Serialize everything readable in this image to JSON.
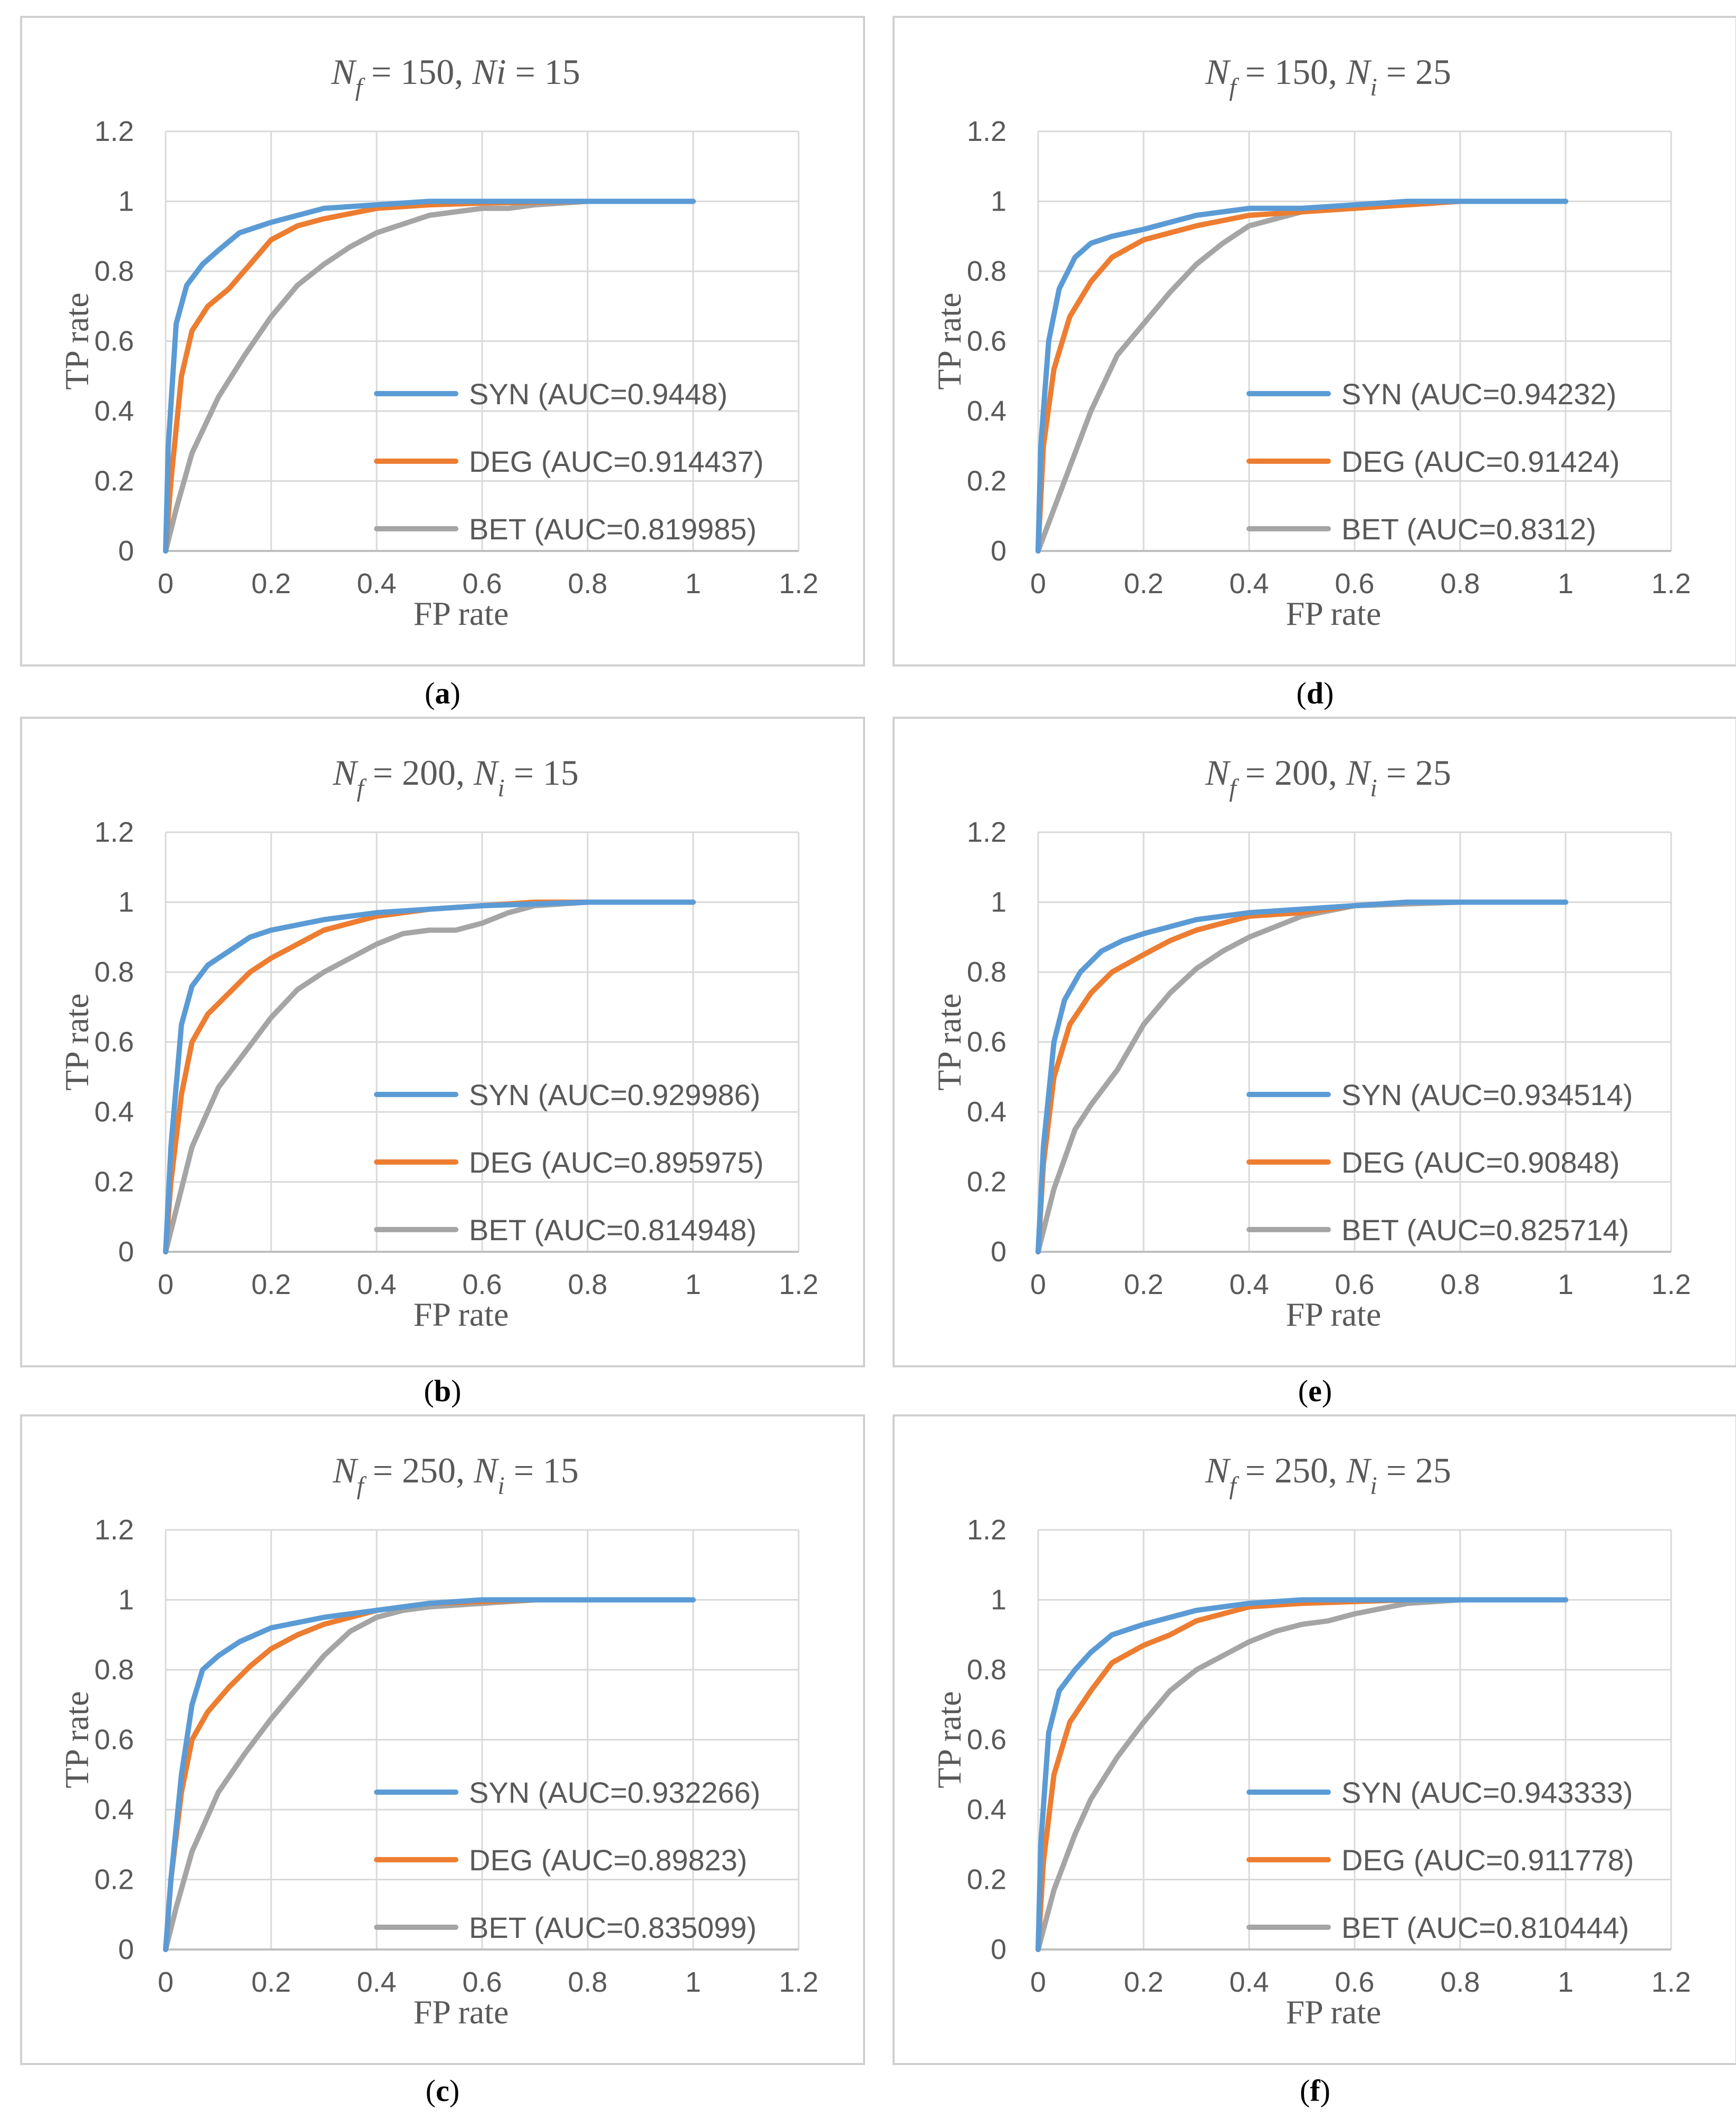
{
  "colors": {
    "syn": "#5b9bd5",
    "deg": "#ed7d31",
    "bet": "#a5a5a5",
    "grid": "#d9d9d9",
    "axis": "#bfbfbf",
    "text": "#595959"
  },
  "chart_data": [
    {
      "id": "a",
      "caption": "a",
      "type": "line",
      "title": {
        "n": "N",
        "nsub": "f",
        "mid": " = 150, ",
        "i": "Ni",
        "isub": "",
        "end": " = 15"
      },
      "xlabel": "FP rate",
      "ylabel": "TP rate",
      "xlim": [
        0,
        1.2
      ],
      "ylim": [
        0,
        1.2
      ],
      "xticks": [
        "0",
        "0.2",
        "0.4",
        "0.6",
        "0.8",
        "1",
        "1.2"
      ],
      "yticks": [
        "0",
        "0.2",
        "0.4",
        "0.6",
        "0.8",
        "1",
        "1.2"
      ],
      "legend_position": "lower-right",
      "series": [
        {
          "name": "SYN (AUC=0.9448)",
          "color": "syn",
          "x": [
            0,
            0.005,
            0.02,
            0.04,
            0.07,
            0.1,
            0.14,
            0.2,
            0.3,
            0.4,
            0.5,
            0.6,
            0.8,
            1
          ],
          "y": [
            0,
            0.3,
            0.65,
            0.76,
            0.82,
            0.86,
            0.91,
            0.94,
            0.98,
            0.99,
            1,
            1,
            1,
            1
          ]
        },
        {
          "name": "DEG (AUC=0.914437)",
          "color": "deg",
          "x": [
            0,
            0.01,
            0.03,
            0.05,
            0.08,
            0.12,
            0.16,
            0.2,
            0.25,
            0.3,
            0.4,
            0.5,
            0.6,
            0.8,
            1
          ],
          "y": [
            0,
            0.2,
            0.5,
            0.63,
            0.7,
            0.75,
            0.82,
            0.89,
            0.93,
            0.95,
            0.98,
            0.99,
            0.995,
            1,
            1
          ],
          "comment": ""
        },
        {
          "name": "BET (AUC=0.819985)",
          "color": "bet",
          "x": [
            0,
            0.02,
            0.05,
            0.1,
            0.15,
            0.2,
            0.25,
            0.3,
            0.35,
            0.4,
            0.5,
            0.6,
            0.65,
            0.7,
            0.8,
            1
          ],
          "y": [
            0,
            0.12,
            0.28,
            0.44,
            0.56,
            0.67,
            0.76,
            0.82,
            0.87,
            0.91,
            0.96,
            0.98,
            0.98,
            0.99,
            1,
            1
          ]
        }
      ]
    },
    {
      "id": "d",
      "caption": "d",
      "type": "line",
      "title": {
        "n": "N",
        "nsub": "f",
        "mid": " = 150, ",
        "i": "N",
        "isub": "i",
        "end": " = 25"
      },
      "xlabel": "FP rate",
      "ylabel": "TP rate",
      "xlim": [
        0,
        1.2
      ],
      "ylim": [
        0,
        1.2
      ],
      "xticks": [
        "0",
        "0.2",
        "0.4",
        "0.6",
        "0.8",
        "1",
        "1.2"
      ],
      "yticks": [
        "0",
        "0.2",
        "0.4",
        "0.6",
        "0.8",
        "1",
        "1.2"
      ],
      "legend_position": "lower-right",
      "series": [
        {
          "name": "SYN (AUC=0.94232)",
          "color": "syn",
          "x": [
            0,
            0.005,
            0.02,
            0.04,
            0.07,
            0.1,
            0.14,
            0.2,
            0.3,
            0.4,
            0.5,
            0.6,
            0.7,
            0.8,
            1
          ],
          "y": [
            0,
            0.3,
            0.6,
            0.75,
            0.84,
            0.88,
            0.9,
            0.92,
            0.96,
            0.98,
            0.98,
            0.99,
            1,
            1,
            1
          ]
        },
        {
          "name": "DEG (AUC=0.91424)",
          "color": "deg",
          "x": [
            0,
            0.01,
            0.03,
            0.06,
            0.1,
            0.14,
            0.2,
            0.3,
            0.4,
            0.5,
            0.6,
            0.7,
            0.8,
            1
          ],
          "y": [
            0,
            0.3,
            0.52,
            0.67,
            0.77,
            0.84,
            0.89,
            0.93,
            0.96,
            0.97,
            0.98,
            0.99,
            1,
            1
          ]
        },
        {
          "name": "BET (AUC=0.8312)",
          "color": "bet",
          "x": [
            0,
            0.05,
            0.1,
            0.15,
            0.2,
            0.25,
            0.3,
            0.35,
            0.4,
            0.5,
            0.6,
            0.7,
            0.8,
            1
          ],
          "y": [
            0,
            0.2,
            0.4,
            0.56,
            0.65,
            0.74,
            0.82,
            0.88,
            0.93,
            0.97,
            0.99,
            0.995,
            1,
            1
          ]
        }
      ]
    },
    {
      "id": "b",
      "caption": "b",
      "type": "line",
      "title": {
        "n": "N",
        "nsub": "f",
        "mid": " = 200, ",
        "i": "N",
        "isub": "i",
        "end": " = 15"
      },
      "xlabel": "FP rate",
      "ylabel": "TP rate",
      "xlim": [
        0,
        1.2
      ],
      "ylim": [
        0,
        1.2
      ],
      "xticks": [
        "0",
        "0.2",
        "0.4",
        "0.6",
        "0.8",
        "1",
        "1.2"
      ],
      "yticks": [
        "0",
        "0.2",
        "0.4",
        "0.6",
        "0.8",
        "1",
        "1.2"
      ],
      "legend_position": "lower-right",
      "series": [
        {
          "name": "SYN (AUC=0.929986)",
          "color": "syn",
          "x": [
            0,
            0.01,
            0.03,
            0.05,
            0.08,
            0.12,
            0.16,
            0.2,
            0.3,
            0.4,
            0.5,
            0.6,
            0.8,
            1
          ],
          "y": [
            0,
            0.3,
            0.65,
            0.76,
            0.82,
            0.86,
            0.9,
            0.92,
            0.95,
            0.97,
            0.98,
            0.99,
            1,
            1
          ]
        },
        {
          "name": "DEG (AUC=0.895975)",
          "color": "deg",
          "x": [
            0,
            0.01,
            0.03,
            0.05,
            0.08,
            0.12,
            0.16,
            0.2,
            0.25,
            0.3,
            0.4,
            0.5,
            0.6,
            0.7,
            0.8,
            1
          ],
          "y": [
            0,
            0.2,
            0.45,
            0.6,
            0.68,
            0.74,
            0.8,
            0.84,
            0.88,
            0.92,
            0.96,
            0.98,
            0.99,
            1,
            1,
            1
          ]
        },
        {
          "name": "BET (AUC=0.814948)",
          "color": "bet",
          "x": [
            0,
            0.02,
            0.05,
            0.1,
            0.15,
            0.2,
            0.25,
            0.3,
            0.35,
            0.4,
            0.45,
            0.5,
            0.55,
            0.6,
            0.65,
            0.7,
            0.8,
            1
          ],
          "y": [
            0,
            0.12,
            0.3,
            0.47,
            0.57,
            0.67,
            0.75,
            0.8,
            0.84,
            0.88,
            0.91,
            0.92,
            0.92,
            0.94,
            0.97,
            0.99,
            1,
            1
          ]
        }
      ]
    },
    {
      "id": "e",
      "caption": "e",
      "type": "line",
      "title": {
        "n": "N",
        "nsub": "f",
        "mid": " = 200, ",
        "i": "N",
        "isub": "i",
        "end": " = 25"
      },
      "xlabel": "FP rate",
      "ylabel": "TP rate",
      "xlim": [
        0,
        1.2
      ],
      "ylim": [
        0,
        1.2
      ],
      "xticks": [
        "0",
        "0.2",
        "0.4",
        "0.6",
        "0.8",
        "1",
        "1.2"
      ],
      "yticks": [
        "0",
        "0.2",
        "0.4",
        "0.6",
        "0.8",
        "1",
        "1.2"
      ],
      "legend_position": "lower-right",
      "series": [
        {
          "name": "SYN (AUC=0.934514)",
          "color": "syn",
          "x": [
            0,
            0.01,
            0.03,
            0.05,
            0.08,
            0.12,
            0.16,
            0.2,
            0.25,
            0.3,
            0.4,
            0.5,
            0.6,
            0.7,
            0.8,
            1
          ],
          "y": [
            0,
            0.3,
            0.6,
            0.72,
            0.8,
            0.86,
            0.89,
            0.91,
            0.93,
            0.95,
            0.97,
            0.98,
            0.99,
            1,
            1,
            1
          ]
        },
        {
          "name": "DEG (AUC=0.90848)",
          "color": "deg",
          "x": [
            0,
            0.01,
            0.03,
            0.06,
            0.1,
            0.14,
            0.2,
            0.25,
            0.3,
            0.4,
            0.5,
            0.6,
            0.7,
            0.8,
            1
          ],
          "y": [
            0,
            0.25,
            0.5,
            0.65,
            0.74,
            0.8,
            0.85,
            0.89,
            0.92,
            0.96,
            0.97,
            0.99,
            1,
            1,
            1
          ]
        },
        {
          "name": "BET (AUC=0.825714)",
          "color": "bet",
          "x": [
            0,
            0.03,
            0.07,
            0.1,
            0.15,
            0.2,
            0.25,
            0.3,
            0.35,
            0.4,
            0.5,
            0.6,
            0.7,
            0.8,
            1
          ],
          "y": [
            0,
            0.18,
            0.35,
            0.42,
            0.52,
            0.65,
            0.74,
            0.81,
            0.86,
            0.9,
            0.96,
            0.99,
            0.995,
            1,
            1
          ]
        }
      ]
    },
    {
      "id": "c",
      "caption": "c",
      "type": "line",
      "title": {
        "n": "N",
        "nsub": "f",
        "mid": " = 250, ",
        "i": "N",
        "isub": "i",
        "end": " = 15"
      },
      "xlabel": "FP rate",
      "ylabel": "TP rate",
      "xlim": [
        0,
        1.2
      ],
      "ylim": [
        0,
        1.2
      ],
      "xticks": [
        "0",
        "0.2",
        "0.4",
        "0.6",
        "0.8",
        "1",
        "1.2"
      ],
      "yticks": [
        "0",
        "0.2",
        "0.4",
        "0.6",
        "0.8",
        "1",
        "1.2"
      ],
      "legend_position": "lower-right",
      "series": [
        {
          "name": "SYN (AUC=0.932266)",
          "color": "syn",
          "x": [
            0,
            0.01,
            0.03,
            0.05,
            0.07,
            0.1,
            0.14,
            0.2,
            0.3,
            0.4,
            0.5,
            0.6,
            0.8,
            1
          ],
          "y": [
            0,
            0.2,
            0.5,
            0.7,
            0.8,
            0.84,
            0.88,
            0.92,
            0.95,
            0.97,
            0.99,
            1,
            1,
            1
          ]
        },
        {
          "name": "DEG (AUC=0.89823)",
          "color": "deg",
          "x": [
            0,
            0.01,
            0.03,
            0.05,
            0.08,
            0.12,
            0.16,
            0.2,
            0.25,
            0.3,
            0.4,
            0.5,
            0.6,
            0.7,
            0.8,
            1
          ],
          "y": [
            0,
            0.2,
            0.45,
            0.6,
            0.68,
            0.75,
            0.81,
            0.86,
            0.9,
            0.93,
            0.97,
            0.99,
            0.995,
            1,
            1,
            1
          ]
        },
        {
          "name": "BET (AUC=0.835099)",
          "color": "bet",
          "x": [
            0,
            0.02,
            0.05,
            0.1,
            0.15,
            0.2,
            0.25,
            0.3,
            0.35,
            0.4,
            0.45,
            0.5,
            0.6,
            0.7,
            0.8,
            1
          ],
          "y": [
            0,
            0.12,
            0.28,
            0.45,
            0.56,
            0.66,
            0.75,
            0.84,
            0.91,
            0.95,
            0.97,
            0.98,
            0.99,
            1,
            1,
            1
          ]
        }
      ]
    },
    {
      "id": "f",
      "caption": "f",
      "type": "line",
      "title": {
        "n": "N",
        "nsub": "f",
        "mid": " = 250, ",
        "i": "N",
        "isub": "i",
        "end": " = 25"
      },
      "xlabel": "FP rate",
      "ylabel": "TP rate",
      "xlim": [
        0,
        1.2
      ],
      "ylim": [
        0,
        1.2
      ],
      "xticks": [
        "0",
        "0.2",
        "0.4",
        "0.6",
        "0.8",
        "1",
        "1.2"
      ],
      "yticks": [
        "0",
        "0.2",
        "0.4",
        "0.6",
        "0.8",
        "1",
        "1.2"
      ],
      "legend_position": "lower-right",
      "series": [
        {
          "name": "SYN (AUC=0.943333)",
          "color": "syn",
          "x": [
            0,
            0.005,
            0.02,
            0.04,
            0.07,
            0.1,
            0.14,
            0.2,
            0.3,
            0.4,
            0.5,
            0.6,
            0.8,
            1
          ],
          "y": [
            0,
            0.3,
            0.62,
            0.74,
            0.8,
            0.85,
            0.9,
            0.93,
            0.97,
            0.99,
            1,
            1,
            1,
            1
          ]
        },
        {
          "name": "DEG (AUC=0.911778)",
          "color": "deg",
          "x": [
            0,
            0.01,
            0.03,
            0.06,
            0.1,
            0.14,
            0.2,
            0.25,
            0.3,
            0.4,
            0.5,
            0.6,
            0.7,
            0.8,
            1
          ],
          "y": [
            0,
            0.25,
            0.5,
            0.65,
            0.74,
            0.82,
            0.87,
            0.9,
            0.94,
            0.98,
            0.99,
            0.995,
            1,
            1,
            1
          ]
        },
        {
          "name": "BET (AUC=0.810444)",
          "color": "bet",
          "x": [
            0,
            0.03,
            0.07,
            0.1,
            0.15,
            0.2,
            0.25,
            0.3,
            0.35,
            0.4,
            0.45,
            0.5,
            0.55,
            0.6,
            0.7,
            0.8,
            1
          ],
          "y": [
            0,
            0.17,
            0.33,
            0.43,
            0.55,
            0.65,
            0.74,
            0.8,
            0.84,
            0.88,
            0.91,
            0.93,
            0.94,
            0.96,
            0.99,
            1,
            1
          ]
        }
      ]
    }
  ]
}
